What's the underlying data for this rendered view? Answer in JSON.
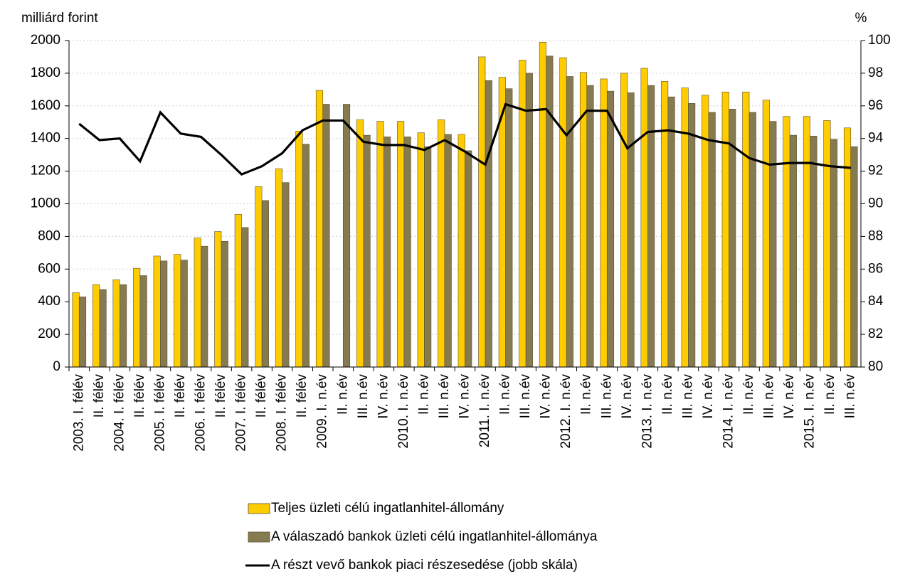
{
  "chart_data": {
    "type": "bar",
    "y_label": "milliárd forint",
    "y2_label": "%",
    "categories": [
      "2003. I. félév",
      "II. félév",
      "2004. I. félév",
      "II. félév",
      "2005. I. félév",
      "II. félév",
      "2006. I. félév",
      "II. félév",
      "2007. I. félév",
      "II. félév",
      "2008. I. félév",
      "II. félév",
      "2009. I. n.év",
      "II. n.év",
      "III. n.év",
      "IV. n.év",
      "2010. I. n.év",
      "II. n.év",
      "III. n.év",
      "IV. n.év",
      "2011. I. n.év",
      "II. n.év",
      "III. n.év",
      "IV. n.év",
      "2012. I. n.év",
      "II. n.év",
      "III. n.év",
      "IV. n.év",
      "2013. I. n.év",
      "II. n.év",
      "III. n.év",
      "IV. n.év",
      "2014. I. n.év",
      "II. n.év",
      "III. n.év",
      "IV. n.év",
      "2015. I. n.év",
      "II. n.év",
      "III. n.év"
    ],
    "series": [
      {
        "name": "Teljes üzleti célú ingatlanhitel-állomány",
        "color": "#ffcc00",
        "type": "bar",
        "values": [
          455,
          505,
          535,
          605,
          680,
          690,
          790,
          830,
          935,
          1105,
          1215,
          1445,
          1695,
          null,
          1515,
          1505,
          1505,
          1435,
          1515,
          1425,
          1900,
          1775,
          1880,
          1990,
          1895,
          1805,
          1765,
          1800,
          1830,
          1750,
          1710,
          1665,
          1685,
          1685,
          1635,
          1535,
          1535,
          1510,
          1465
        ]
      },
      {
        "name": "A válaszadó bankok üzleti célú ingatlanhitel-állománya",
        "color": "#857a50",
        "type": "bar",
        "values": [
          430,
          475,
          505,
          560,
          650,
          655,
          740,
          770,
          855,
          1020,
          1130,
          1365,
          1610,
          1610,
          1420,
          1410,
          1410,
          1350,
          1425,
          1325,
          1755,
          1705,
          1800,
          1905,
          1780,
          1725,
          1690,
          1680,
          1725,
          1655,
          1615,
          1560,
          1580,
          1560,
          1505,
          1420,
          1415,
          1395,
          1350
        ]
      },
      {
        "name": "A részt vevő bankok piaci részesedése (jobb skála)",
        "color": "#000000",
        "type": "line",
        "axis": "y2",
        "values": [
          94.9,
          93.9,
          94.0,
          92.6,
          95.6,
          94.3,
          94.1,
          93.0,
          91.8,
          92.3,
          93.1,
          94.5,
          95.1,
          95.1,
          93.8,
          93.6,
          93.6,
          93.3,
          93.9,
          93.2,
          92.4,
          96.1,
          95.7,
          95.8,
          94.2,
          95.7,
          95.7,
          93.4,
          94.4,
          94.5,
          94.3,
          93.9,
          93.7,
          92.8,
          92.4,
          92.5,
          92.5,
          92.3,
          92.2
        ]
      }
    ],
    "ylim": [
      0,
      2000
    ],
    "yticks": [
      0,
      200,
      400,
      600,
      800,
      1000,
      1200,
      1400,
      1600,
      1800,
      2000
    ],
    "y2lim": [
      80,
      100
    ],
    "y2ticks": [
      80,
      82,
      84,
      86,
      88,
      90,
      92,
      94,
      96,
      98,
      100
    ],
    "grid": true
  }
}
